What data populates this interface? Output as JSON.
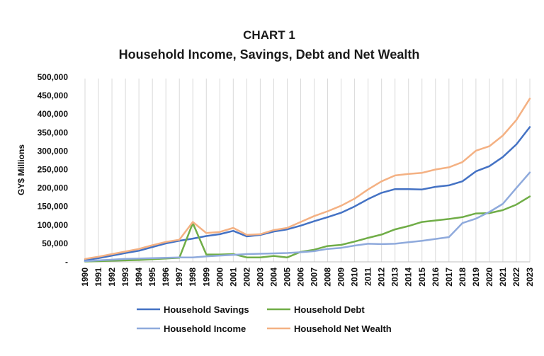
{
  "chart_data": {
    "type": "line",
    "title": "CHART 1",
    "subtitle": "Household Income, Savings, Debt and Net Wealth",
    "ylabel": "GY$ Millions",
    "xlabel": "",
    "ylim": [
      0,
      500000
    ],
    "y_ticks": [
      "-",
      "50,000",
      "100,000",
      "150,000",
      "200,000",
      "250,000",
      "300,000",
      "350,000",
      "400,000",
      "450,000",
      "500,000"
    ],
    "grid": "vertical",
    "legend_position": "bottom",
    "categories": [
      "1990",
      "1991",
      "1992",
      "1993",
      "1994",
      "1995",
      "1996",
      "1997",
      "1998",
      "1999",
      "2000",
      "2001",
      "2002",
      "2003",
      "2004",
      "2005",
      "2006",
      "2007",
      "2008",
      "2009",
      "2010",
      "2011",
      "2012",
      "2013",
      "2014",
      "2015",
      "2016",
      "2017",
      "2018",
      "2019",
      "2020",
      "2021",
      "2022",
      "2023"
    ],
    "series": [
      {
        "name": "Household Savings",
        "color": "#4472c4",
        "values": [
          5000,
          10000,
          17000,
          24000,
          30000,
          40000,
          50000,
          57000,
          63000,
          70000,
          75000,
          84000,
          69000,
          73000,
          82000,
          88000,
          98000,
          110000,
          121000,
          133000,
          150000,
          170000,
          187000,
          197000,
          197000,
          196000,
          203000,
          207000,
          218000,
          245000,
          259000,
          284000,
          318000,
          365000
        ]
      },
      {
        "name": "Household Debt",
        "color": "#70ad47",
        "values": [
          1000,
          2000,
          3000,
          4000,
          5000,
          7000,
          9000,
          11000,
          105000,
          20000,
          20000,
          21000,
          12000,
          12000,
          16000,
          12000,
          27000,
          33000,
          43000,
          46000,
          55000,
          65000,
          74000,
          88000,
          97000,
          108000,
          112000,
          116000,
          121000,
          131000,
          132000,
          140000,
          155000,
          177000
        ]
      },
      {
        "name": "Household Income",
        "color": "#8faadc",
        "values": [
          2000,
          4000,
          6000,
          8000,
          9000,
          10000,
          11000,
          12000,
          12000,
          15000,
          17000,
          19000,
          21000,
          22000,
          23000,
          24000,
          26000,
          29000,
          35000,
          38000,
          44000,
          49000,
          48000,
          49000,
          53000,
          57000,
          62000,
          67000,
          105000,
          117000,
          135000,
          157000,
          200000,
          242000
        ]
      },
      {
        "name": "Household Net Wealth",
        "color": "#f4b183",
        "values": [
          8000,
          14000,
          21000,
          28000,
          35000,
          45000,
          54000,
          60000,
          108000,
          78000,
          81000,
          92000,
          73000,
          75000,
          86000,
          92000,
          108000,
          124000,
          137000,
          152000,
          171000,
          196000,
          218000,
          234000,
          238000,
          241000,
          250000,
          256000,
          270000,
          301000,
          313000,
          342000,
          384000,
          442000
        ]
      }
    ]
  }
}
